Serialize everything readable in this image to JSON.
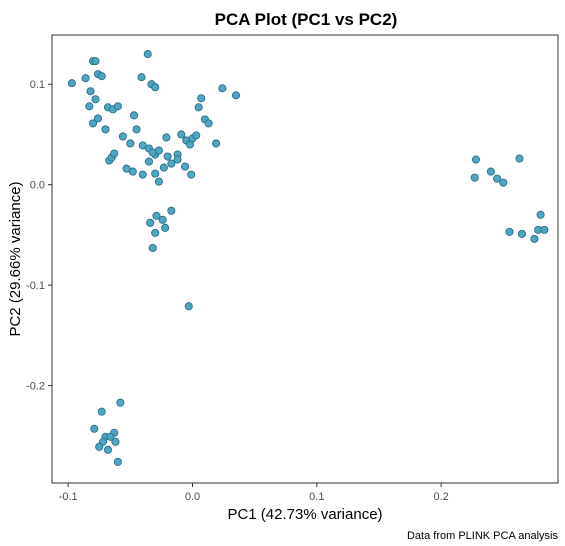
{
  "chart_data": {
    "type": "scatter",
    "title": "PCA Plot (PC1 vs PC2)",
    "xlabel": "PC1 (42.73% variance)",
    "ylabel": "PC2 (29.66% variance)",
    "caption": "Data from PLINK PCA analysis",
    "xlim": [
      -0.113,
      0.294
    ],
    "ylim": [
      -0.297,
      0.149
    ],
    "xticks": [
      -0.1,
      0.0,
      0.1,
      0.2
    ],
    "xtick_labels": [
      "-0.1",
      "0.0",
      "0.1",
      "0.2"
    ],
    "yticks": [
      0.1,
      0.0,
      -0.1,
      -0.2
    ],
    "ytick_labels": [
      "0.1",
      "0.0",
      "-0.1",
      "-0.2"
    ],
    "grid": false,
    "point_color": "#4ea6c2",
    "point_stroke": "#2c6f86",
    "x": [
      -0.097,
      -0.086,
      -0.08,
      -0.078,
      -0.082,
      -0.076,
      -0.073,
      -0.068,
      -0.064,
      -0.06,
      -0.083,
      -0.078,
      -0.076,
      -0.08,
      -0.07,
      -0.067,
      -0.065,
      -0.063,
      -0.036,
      -0.041,
      -0.033,
      -0.03,
      -0.047,
      -0.045,
      -0.05,
      -0.04,
      -0.035,
      -0.03,
      -0.023,
      -0.02,
      -0.035,
      -0.032,
      -0.027,
      -0.021,
      -0.009,
      -0.005,
      -0.012,
      -0.002,
      0.0,
      0.003,
      -0.053,
      -0.048,
      -0.056,
      -0.04,
      -0.03,
      -0.027,
      -0.017,
      -0.012,
      -0.006,
      -0.001,
      0.005,
      0.007,
      0.01,
      0.013,
      0.019,
      0.024,
      0.035,
      -0.017,
      -0.029,
      -0.024,
      -0.034,
      -0.022,
      -0.03,
      -0.032,
      -0.003,
      0.228,
      0.227,
      0.24,
      0.245,
      0.25,
      0.263,
      0.255,
      0.265,
      0.275,
      0.278,
      0.28,
      0.283,
      -0.058,
      -0.073,
      -0.079,
      -0.063,
      -0.07,
      -0.072,
      -0.075,
      -0.066,
      -0.062,
      -0.068,
      -0.06
    ],
    "y": [
      0.101,
      0.106,
      0.123,
      0.123,
      0.093,
      0.11,
      0.108,
      0.077,
      0.075,
      0.078,
      0.078,
      0.085,
      0.066,
      0.061,
      0.055,
      0.024,
      0.027,
      0.031,
      0.13,
      0.107,
      0.1,
      0.097,
      0.069,
      0.055,
      0.041,
      0.039,
      0.036,
      0.03,
      0.017,
      0.028,
      0.023,
      0.032,
      0.034,
      0.047,
      0.05,
      0.044,
      0.03,
      0.04,
      0.046,
      0.049,
      0.016,
      0.013,
      0.048,
      0.01,
      0.011,
      0.003,
      0.021,
      0.025,
      0.018,
      0.01,
      0.077,
      0.086,
      0.065,
      0.061,
      0.041,
      0.096,
      0.089,
      -0.026,
      -0.031,
      -0.035,
      -0.038,
      -0.043,
      -0.048,
      -0.063,
      -0.121,
      0.025,
      0.007,
      0.013,
      0.006,
      0.002,
      0.026,
      -0.047,
      -0.049,
      -0.054,
      -0.045,
      -0.03,
      -0.045,
      -0.217,
      -0.226,
      -0.243,
      -0.247,
      -0.251,
      -0.256,
      -0.261,
      -0.251,
      -0.256,
      -0.264,
      -0.276
    ]
  }
}
